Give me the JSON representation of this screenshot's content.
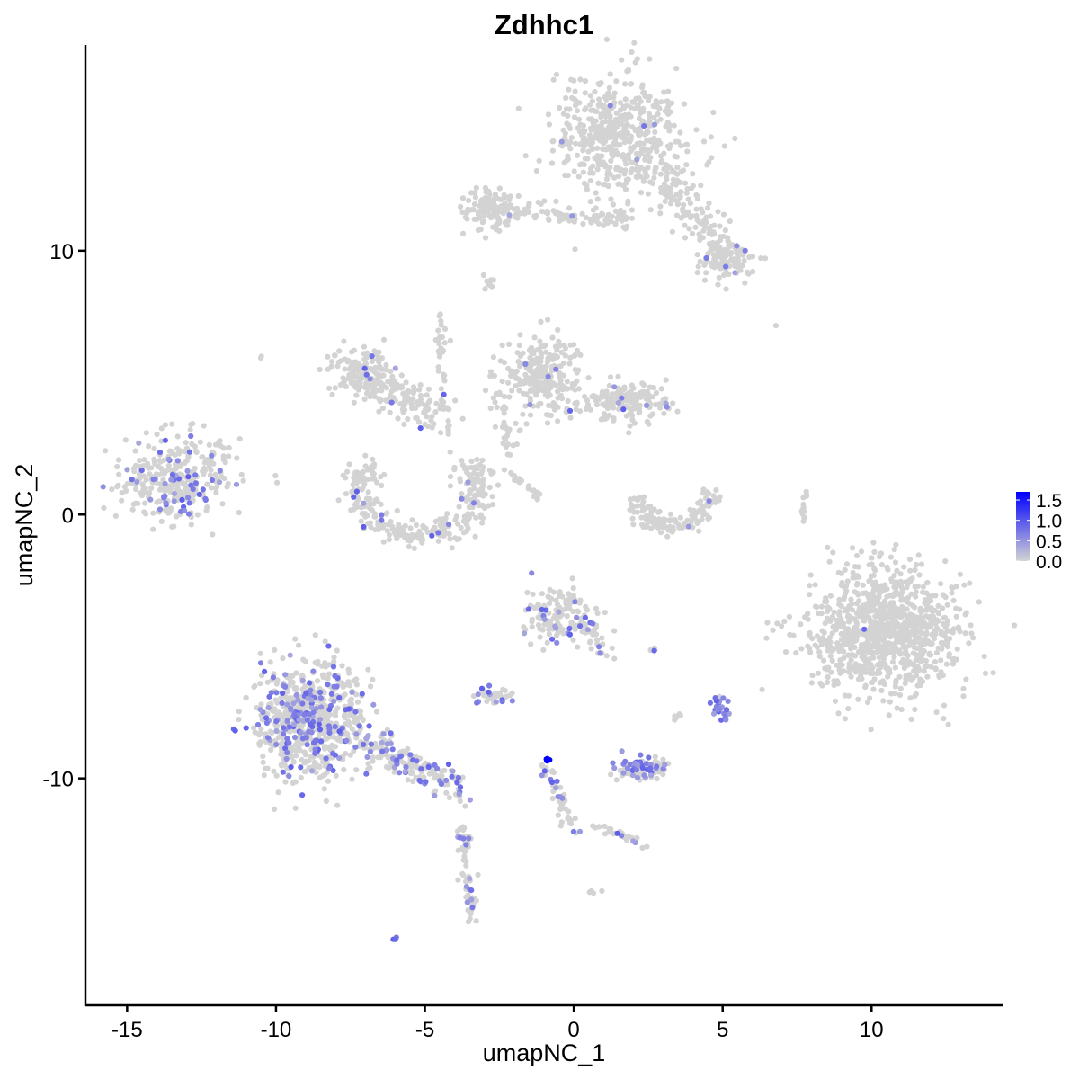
{
  "chart_data": {
    "type": "scatter",
    "title": "Zdhhc1",
    "xlabel": "umapNC_1",
    "ylabel": "umapNC_2",
    "xlim": [
      -16.4,
      14.4
    ],
    "ylim": [
      -18.6,
      17.8
    ],
    "xticks": [
      -15,
      -10,
      -5,
      0,
      5,
      10
    ],
    "yticks": [
      -10,
      0,
      10
    ],
    "grid": false,
    "color_scale": {
      "low": "#d3d3d3",
      "high": "#0000ff",
      "min": 0,
      "max": 1.7
    },
    "legend": {
      "position": "right",
      "labels": [
        "1.5",
        "1.0",
        "0.5",
        "0.0"
      ],
      "values": [
        1.5,
        1.0,
        0.5,
        0.0
      ]
    },
    "clusters": [
      {
        "center": [
          1.57,
          14.4
        ],
        "spread": [
          1.1,
          1.2
        ],
        "n": 520,
        "expr_frac": 0.02
      },
      {
        "line": [
          [
            2.8,
            13.0
          ],
          [
            5.3,
            9.6
          ]
        ],
        "spread": 0.35,
        "n": 140,
        "expr_frac": 0.02
      },
      {
        "center": [
          5.2,
          9.6
        ],
        "spread": [
          0.5,
          0.4
        ],
        "n": 90,
        "expr_frac": 0.05
      },
      {
        "line": [
          [
            -3.6,
            11.6
          ],
          [
            1.9,
            11.2
          ]
        ],
        "spread": 0.2,
        "n": 120,
        "expr_frac": 0.01
      },
      {
        "center": [
          -2.7,
          11.6
        ],
        "spread": [
          0.5,
          0.4
        ],
        "n": 80,
        "expr_frac": 0.0
      },
      {
        "center": [
          -2.8,
          8.8
        ],
        "spread": [
          0.15,
          0.15
        ],
        "n": 8,
        "expr_frac": 0.0
      },
      {
        "center": [
          -13.4,
          1.3
        ],
        "spread": [
          0.9,
          0.8
        ],
        "n": 320,
        "expr_frac": 0.16
      },
      {
        "line": [
          [
            -12.4,
            2.0
          ],
          [
            -11.4,
            2.8
          ]
        ],
        "spread": 0.15,
        "n": 15,
        "expr_frac": 0.0
      },
      {
        "center": [
          -7.2,
          5.5
        ],
        "spread": [
          0.45,
          0.45
        ],
        "n": 120,
        "expr_frac": 0.01
      },
      {
        "line": [
          [
            -7.0,
            5.2
          ],
          [
            -4.6,
            3.8
          ]
        ],
        "spread": 0.35,
        "n": 140,
        "expr_frac": 0.02
      },
      {
        "line": [
          [
            -4.5,
            7.6
          ],
          [
            -4.3,
            2.5
          ]
        ],
        "spread": 0.12,
        "n": 45,
        "expr_frac": 0.02
      },
      {
        "arc": [
          -5.2,
          1.0
        ],
        "radius": [
          2.0,
          1.8
        ],
        "angles": [
          150,
          390
        ],
        "spread": 0.4,
        "n": 320,
        "expr_frac": 0.04
      },
      {
        "center": [
          -1.1,
          5.3
        ],
        "spread": [
          0.6,
          0.7
        ],
        "n": 260,
        "expr_frac": 0.02
      },
      {
        "center": [
          1.7,
          4.3
        ],
        "spread": [
          0.7,
          0.35
        ],
        "n": 180,
        "expr_frac": 0.02
      },
      {
        "line": [
          [
            -2.5,
            4.5
          ],
          [
            -2.1,
            2.3
          ]
        ],
        "spread": 0.15,
        "n": 30,
        "expr_frac": 0.0
      },
      {
        "line": [
          [
            -2.4,
            1.8
          ],
          [
            -1.1,
            0.6
          ]
        ],
        "spread": 0.08,
        "n": 20,
        "expr_frac": 0.0
      },
      {
        "arc": [
          3.3,
          1.2
        ],
        "radius": [
          1.4,
          1.6
        ],
        "angles": [
          200,
          350
        ],
        "spread": 0.2,
        "n": 130,
        "expr_frac": 0.02
      },
      {
        "line": [
          [
            7.8,
            0.9
          ],
          [
            7.6,
            -0.4
          ]
        ],
        "spread": 0.06,
        "n": 14,
        "expr_frac": 0.0
      },
      {
        "center": [
          10.5,
          -4.4
        ],
        "spread": [
          1.3,
          1.2
        ],
        "n": 950,
        "expr_frac": 0.003
      },
      {
        "center": [
          -8.85,
          -7.8
        ],
        "spread": [
          0.9,
          1.1
        ],
        "n": 700,
        "expr_frac": 0.22
      },
      {
        "line": [
          [
            -7.0,
            -8.6
          ],
          [
            -3.8,
            -10.4
          ]
        ],
        "spread": 0.3,
        "n": 170,
        "expr_frac": 0.3
      },
      {
        "line": [
          [
            -3.7,
            -11.8
          ],
          [
            -3.4,
            -15.3
          ]
        ],
        "spread": 0.12,
        "n": 70,
        "expr_frac": 0.15
      },
      {
        "center": [
          -0.5,
          -3.8
        ],
        "spread": [
          0.6,
          0.6
        ],
        "n": 140,
        "expr_frac": 0.1
      },
      {
        "line": [
          [
            0.2,
            -3.9
          ],
          [
            1.1,
            -5.4
          ]
        ],
        "spread": 0.15,
        "n": 30,
        "expr_frac": 0.1
      },
      {
        "center": [
          -2.6,
          -6.9
        ],
        "spread": [
          0.3,
          0.15
        ],
        "n": 40,
        "expr_frac": 0.3
      },
      {
        "center": [
          4.95,
          -7.3
        ],
        "spread": [
          0.15,
          0.25
        ],
        "n": 25,
        "expr_frac": 0.8
      },
      {
        "center": [
          2.3,
          -9.6
        ],
        "spread": [
          0.5,
          0.18
        ],
        "n": 90,
        "expr_frac": 0.4
      },
      {
        "center": [
          -0.9,
          -9.3
        ],
        "spread": [
          0.06,
          0.05
        ],
        "n": 6,
        "expr_frac": 1.0,
        "expr": 1.7
      },
      {
        "line": [
          [
            -0.85,
            -9.6
          ],
          [
            -0.1,
            -12.0
          ]
        ],
        "spread": 0.12,
        "n": 45,
        "expr_frac": 0.15
      },
      {
        "line": [
          [
            0.6,
            -11.7
          ],
          [
            2.5,
            -12.6
          ]
        ],
        "spread": 0.1,
        "n": 25,
        "expr_frac": 0.15
      },
      {
        "center": [
          0.7,
          -14.3
        ],
        "spread": [
          0.1,
          0.05
        ],
        "n": 5,
        "expr_frac": 0.0
      },
      {
        "center": [
          -6.0,
          -16.1
        ],
        "spread": [
          0.05,
          0.05
        ],
        "n": 3,
        "expr_frac": 1.0
      },
      {
        "center": [
          -10.5,
          6.0
        ],
        "spread": [
          0.05,
          0.05
        ],
        "n": 2,
        "expr_frac": 0.0
      },
      {
        "center": [
          6.8,
          7.1
        ],
        "spread": [
          0.04,
          0.04
        ],
        "n": 1,
        "expr_frac": 0.0
      },
      {
        "center": [
          2.7,
          -5.1
        ],
        "spread": [
          0.1,
          0.05
        ],
        "n": 4,
        "expr_frac": 0.2
      },
      {
        "center": [
          3.4,
          -7.7
        ],
        "spread": [
          0.1,
          0.1
        ],
        "n": 5,
        "expr_frac": 0.0
      }
    ]
  }
}
